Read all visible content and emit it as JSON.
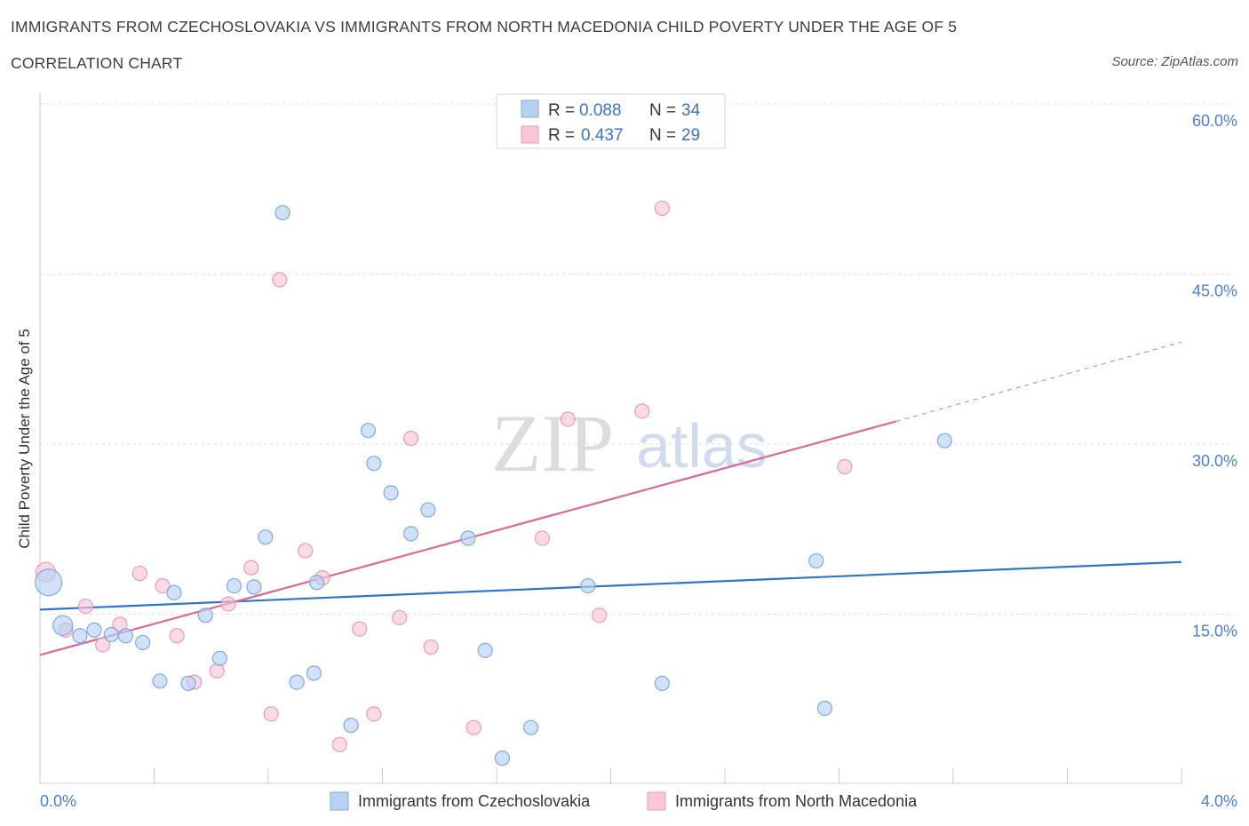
{
  "title": "IMMIGRANTS FROM CZECHOSLOVAKIA VS IMMIGRANTS FROM NORTH MACEDONIA CHILD POVERTY UNDER THE AGE OF 5",
  "subtitle": "CORRELATION CHART",
  "source": "Source: ZipAtlas.com",
  "watermark": {
    "zip": "ZIP",
    "atlas": "atlas"
  },
  "colors": {
    "blue_fill": "#b8d1f2",
    "blue_stroke": "#7eaae3",
    "blue_line": "#2f74c9",
    "pink_fill": "#f8c6d5",
    "pink_stroke": "#ee9ab4",
    "pink_line": "#e06793",
    "grid": "#dddddd",
    "axis_label": "#4a7fd4"
  },
  "legend_top": {
    "r_label": "R =",
    "n_label": "N =",
    "rows": [
      {
        "series": "blue",
        "r": "0.088",
        "n": "34"
      },
      {
        "series": "pink",
        "r": "0.437",
        "n": "29"
      }
    ]
  },
  "chart_data": {
    "type": "scatter",
    "title": "IMMIGRANTS FROM CZECHOSLOVAKIA VS IMMIGRANTS FROM NORTH MACEDONIA CHILD POVERTY UNDER THE AGE OF 5",
    "xlabel": "",
    "ylabel": "Child Poverty Under the Age of 5",
    "xlim": [
      0.0,
      4.0
    ],
    "ylim": [
      0.0,
      60.0
    ],
    "x_tick_labels": [
      "0.0%",
      "4.0%"
    ],
    "y_ticks": [
      15,
      30,
      45,
      60
    ],
    "y_tick_labels": [
      "15.0%",
      "30.0%",
      "45.0%",
      "60.0%"
    ],
    "grid": true,
    "legend_position": "top-center",
    "series": [
      {
        "name": "Immigrants from Czechoslovakia",
        "color": "#b8d1f2",
        "trend": {
          "x0": 0.0,
          "y0": 15.4,
          "x1": 4.0,
          "y1": 19.6
        },
        "points": [
          {
            "x": 0.03,
            "y": 17.8,
            "size": "large"
          },
          {
            "x": 0.08,
            "y": 14.0,
            "size": "medium"
          },
          {
            "x": 0.14,
            "y": 13.1
          },
          {
            "x": 0.19,
            "y": 13.6
          },
          {
            "x": 0.25,
            "y": 13.2
          },
          {
            "x": 0.3,
            "y": 13.1
          },
          {
            "x": 0.36,
            "y": 12.5
          },
          {
            "x": 0.42,
            "y": 9.1
          },
          {
            "x": 0.47,
            "y": 16.9
          },
          {
            "x": 0.52,
            "y": 8.9
          },
          {
            "x": 0.58,
            "y": 14.9
          },
          {
            "x": 0.63,
            "y": 11.1
          },
          {
            "x": 0.68,
            "y": 17.5
          },
          {
            "x": 0.75,
            "y": 17.4
          },
          {
            "x": 0.79,
            "y": 21.8
          },
          {
            "x": 0.85,
            "y": 50.4
          },
          {
            "x": 0.9,
            "y": 9.0
          },
          {
            "x": 0.97,
            "y": 17.8
          },
          {
            "x": 0.96,
            "y": 9.8
          },
          {
            "x": 1.09,
            "y": 5.2
          },
          {
            "x": 1.15,
            "y": 31.2
          },
          {
            "x": 1.17,
            "y": 28.3
          },
          {
            "x": 1.23,
            "y": 25.7
          },
          {
            "x": 1.3,
            "y": 22.1
          },
          {
            "x": 1.36,
            "y": 24.2
          },
          {
            "x": 1.5,
            "y": 21.7
          },
          {
            "x": 1.56,
            "y": 11.8
          },
          {
            "x": 1.62,
            "y": 2.3
          },
          {
            "x": 1.72,
            "y": 5.0
          },
          {
            "x": 1.92,
            "y": 17.5
          },
          {
            "x": 2.18,
            "y": 8.9
          },
          {
            "x": 2.72,
            "y": 19.7
          },
          {
            "x": 2.75,
            "y": 6.7
          },
          {
            "x": 3.17,
            "y": 30.3
          }
        ]
      },
      {
        "name": "Immigrants from North Macedonia",
        "color": "#f8c6d5",
        "trend": {
          "x0": 0.0,
          "y0": 11.4,
          "x1": 3.0,
          "y1": 32.0,
          "dashed_to_x": 4.0,
          "dashed_to_y": 39.0
        },
        "points": [
          {
            "x": 0.02,
            "y": 18.7,
            "size": "medium"
          },
          {
            "x": 0.09,
            "y": 13.6
          },
          {
            "x": 0.16,
            "y": 15.7
          },
          {
            "x": 0.22,
            "y": 12.3
          },
          {
            "x": 0.28,
            "y": 14.1
          },
          {
            "x": 0.35,
            "y": 18.6
          },
          {
            "x": 0.43,
            "y": 17.5
          },
          {
            "x": 0.48,
            "y": 13.1
          },
          {
            "x": 0.54,
            "y": 9.0
          },
          {
            "x": 0.62,
            "y": 10.0
          },
          {
            "x": 0.66,
            "y": 15.9
          },
          {
            "x": 0.74,
            "y": 19.1
          },
          {
            "x": 0.81,
            "y": 6.2
          },
          {
            "x": 0.84,
            "y": 44.5
          },
          {
            "x": 0.93,
            "y": 20.6
          },
          {
            "x": 0.99,
            "y": 18.2
          },
          {
            "x": 1.05,
            "y": 3.5
          },
          {
            "x": 1.12,
            "y": 13.7
          },
          {
            "x": 1.17,
            "y": 6.2
          },
          {
            "x": 1.26,
            "y": 14.7
          },
          {
            "x": 1.3,
            "y": 30.5
          },
          {
            "x": 1.37,
            "y": 12.1
          },
          {
            "x": 1.52,
            "y": 5.0
          },
          {
            "x": 1.76,
            "y": 21.7
          },
          {
            "x": 1.85,
            "y": 32.2
          },
          {
            "x": 1.96,
            "y": 14.9
          },
          {
            "x": 2.11,
            "y": 32.9
          },
          {
            "x": 2.18,
            "y": 50.8
          },
          {
            "x": 2.82,
            "y": 28.0
          }
        ]
      }
    ]
  }
}
